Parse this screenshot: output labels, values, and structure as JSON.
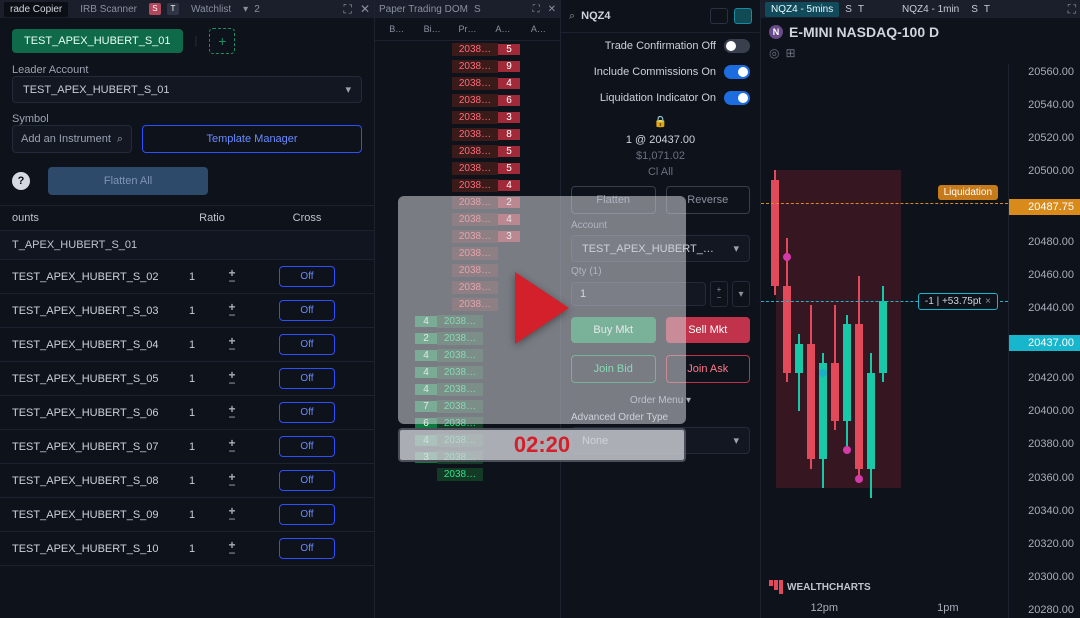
{
  "video_overlay": {
    "timestamp": "02:20"
  },
  "left_panel": {
    "tabbar": {
      "tab1": "rade Copier",
      "tab2": "IRB Scanner",
      "tab3": "Watchlist",
      "count": "2"
    },
    "selected_template": "TEST_APEX_HUBERT_S_01",
    "leader_label": "Leader Account",
    "leader_value": "TEST_APEX_HUBERT_S_01",
    "symbol_label": "Symbol",
    "symbol_placeholder": "Add an Instrument",
    "template_manager_btn": "Template Manager",
    "flatten_btn": "Flatten All",
    "headers": {
      "accounts": "ounts",
      "ratio": "Ratio",
      "cross": "Cross"
    },
    "group_header": "T_APEX_HUBERT_S_01",
    "rows": [
      {
        "name": "TEST_APEX_HUBERT_S_02",
        "ratio": "1",
        "cross": "Off"
      },
      {
        "name": "TEST_APEX_HUBERT_S_03",
        "ratio": "1",
        "cross": "Off"
      },
      {
        "name": "TEST_APEX_HUBERT_S_04",
        "ratio": "1",
        "cross": "Off"
      },
      {
        "name": "TEST_APEX_HUBERT_S_05",
        "ratio": "1",
        "cross": "Off"
      },
      {
        "name": "TEST_APEX_HUBERT_S_06",
        "ratio": "1",
        "cross": "Off"
      },
      {
        "name": "TEST_APEX_HUBERT_S_07",
        "ratio": "1",
        "cross": "Off"
      },
      {
        "name": "TEST_APEX_HUBERT_S_08",
        "ratio": "1",
        "cross": "Off"
      },
      {
        "name": "TEST_APEX_HUBERT_S_09",
        "ratio": "1",
        "cross": "Off"
      },
      {
        "name": "TEST_APEX_HUBERT_S_10",
        "ratio": "1",
        "cross": "Off"
      }
    ]
  },
  "mid_panel": {
    "title": "Paper Trading DOM",
    "head": [
      "B…",
      "Bi…",
      "Pr…",
      "A…",
      "A…"
    ],
    "ladder_top": [
      {
        "price": "2038…",
        "ask": "5"
      },
      {
        "price": "2038…",
        "ask": "9"
      },
      {
        "price": "2038…",
        "ask": "4"
      },
      {
        "price": "2038…",
        "ask": "6"
      },
      {
        "price": "2038…",
        "ask": "3"
      },
      {
        "price": "2038…",
        "ask": "8"
      },
      {
        "price": "2038…",
        "ask": "5"
      },
      {
        "price": "2038…",
        "ask": "5"
      },
      {
        "price": "2038…",
        "ask": "4"
      },
      {
        "price": "2038…",
        "ask": "2"
      },
      {
        "price": "2038…",
        "ask": "4"
      },
      {
        "price": "2038…",
        "ask": "3"
      },
      {
        "price": "2038…",
        "ask": ""
      },
      {
        "price": "2038…",
        "ask": ""
      },
      {
        "price": "2038…",
        "ask": ""
      },
      {
        "price": "2038…",
        "ask": ""
      }
    ],
    "ladder_bottom": [
      {
        "bid": "4",
        "price": "2038…"
      },
      {
        "bid": "2",
        "price": "2038…"
      },
      {
        "bid": "4",
        "price": "2038…"
      },
      {
        "bid": "4",
        "price": "2038…"
      },
      {
        "bid": "4",
        "price": "2038…"
      },
      {
        "bid": "7",
        "price": "2038…"
      },
      {
        "bid": "6",
        "price": "2038…"
      },
      {
        "bid": "4",
        "price": "2038…"
      },
      {
        "bid": "3",
        "price": "2038…"
      },
      {
        "bid": "",
        "price": "2038…"
      }
    ]
  },
  "dom_panel": {
    "symbol": "NQZ4",
    "toggles": {
      "trade_confirm": {
        "label": "Trade Confirmation Off",
        "on": false
      },
      "commissions": {
        "label": "Include Commissions On",
        "on": true
      },
      "liquidation": {
        "label": "Liquidation Indicator On",
        "on": true
      }
    },
    "position_line": "1 @ 20437.00",
    "pnl_line": "$1,071.02",
    "close_all": "Cl All",
    "flatten_btn": "Flatten",
    "reverse_btn": "Reverse",
    "account_label": "Account",
    "account_value": "TEST_APEX_HUBERT_…",
    "qty_label": "Qty (1)",
    "qty_value": "1",
    "buy_btn": "Buy Mkt",
    "sell_btn": "Sell Mkt",
    "join_bid_btn": "Join Bid",
    "join_ask_btn": "Join Ask",
    "order_menu": "Order Menu ▾",
    "adv_label": "Advanced Order Type",
    "adv_value": "None"
  },
  "chart_panel": {
    "tab1": "NQZ4 - 5mins",
    "tab2": "NQZ4 - 1min",
    "title": "E-MINI NASDAQ-100 D",
    "y_ticks": [
      "20560.00",
      "20540.00",
      "20520.00",
      "20500.00",
      "20487.75",
      "20480.00",
      "20460.00",
      "20440.00",
      "20437.00",
      "20420.00",
      "20400.00",
      "20380.00",
      "20360.00",
      "20340.00",
      "20320.00",
      "20300.00",
      "20280.00"
    ],
    "x_ticks": [
      "12pm",
      "1pm"
    ],
    "liq_tag": "Liquidation",
    "pos_tag": "-1 | +53.75pt",
    "brand": "WEALTHCHARTS",
    "colors": {
      "candle_up": "#17c9a8",
      "candle_dn": "#e04a5a",
      "liq_tag_bg": "#c77a1a",
      "price_tag_bg": "#17b6cc",
      "hi_tick_bg": "#d88a1a",
      "red_zone": "rgba(200,40,60,0.22)",
      "dot_cyan": "#1ab0c8",
      "dot_magenta": "#d63aa8"
    }
  }
}
